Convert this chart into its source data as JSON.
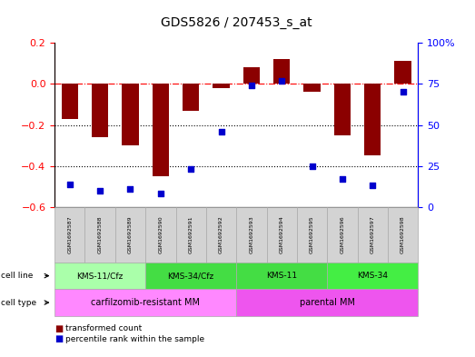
{
  "title": "GDS5826 / 207453_s_at",
  "samples": [
    "GSM1692587",
    "GSM1692588",
    "GSM1692589",
    "GSM1692590",
    "GSM1692591",
    "GSM1692592",
    "GSM1692593",
    "GSM1692594",
    "GSM1692595",
    "GSM1692596",
    "GSM1692597",
    "GSM1692598"
  ],
  "bar_values": [
    -0.17,
    -0.26,
    -0.3,
    -0.45,
    -0.13,
    -0.02,
    0.08,
    0.12,
    -0.04,
    -0.25,
    -0.35,
    0.11
  ],
  "dot_values": [
    14,
    10,
    11,
    8,
    23,
    46,
    74,
    77,
    25,
    17,
    13,
    70
  ],
  "bar_color": "#8B0000",
  "dot_color": "#0000CD",
  "ylim_left": [
    -0.6,
    0.2
  ],
  "ylim_right": [
    0,
    100
  ],
  "yticks_left": [
    -0.6,
    -0.4,
    -0.2,
    0.0,
    0.2
  ],
  "yticks_right": [
    0,
    25,
    50,
    75,
    100
  ],
  "ytick_labels_right": [
    "0",
    "25",
    "50",
    "75",
    "100%"
  ],
  "hline_y": 0.0,
  "dotted_lines": [
    -0.2,
    -0.4
  ],
  "cell_line_groups": [
    {
      "label": "KMS-11/Cfz",
      "start": 0,
      "end": 3,
      "color": "#AAFFAA"
    },
    {
      "label": "KMS-34/Cfz",
      "start": 3,
      "end": 6,
      "color": "#44DD44"
    },
    {
      "label": "KMS-11",
      "start": 6,
      "end": 9,
      "color": "#44DD44"
    },
    {
      "label": "KMS-34",
      "start": 9,
      "end": 12,
      "color": "#44EE44"
    }
  ],
  "cell_type_groups": [
    {
      "label": "carfilzomib-resistant MM",
      "start": 0,
      "end": 6,
      "color": "#FF88FF"
    },
    {
      "label": "parental MM",
      "start": 6,
      "end": 12,
      "color": "#EE55EE"
    }
  ],
  "cell_line_label": "cell line",
  "cell_type_label": "cell type",
  "legend_bar_label": "transformed count",
  "legend_dot_label": "percentile rank within the sample",
  "bar_width": 0.55,
  "bg_color": "#FFFFFF",
  "sample_bg_color": "#D3D3D3",
  "fig_width": 5.23,
  "fig_height": 3.93,
  "dpi": 100
}
